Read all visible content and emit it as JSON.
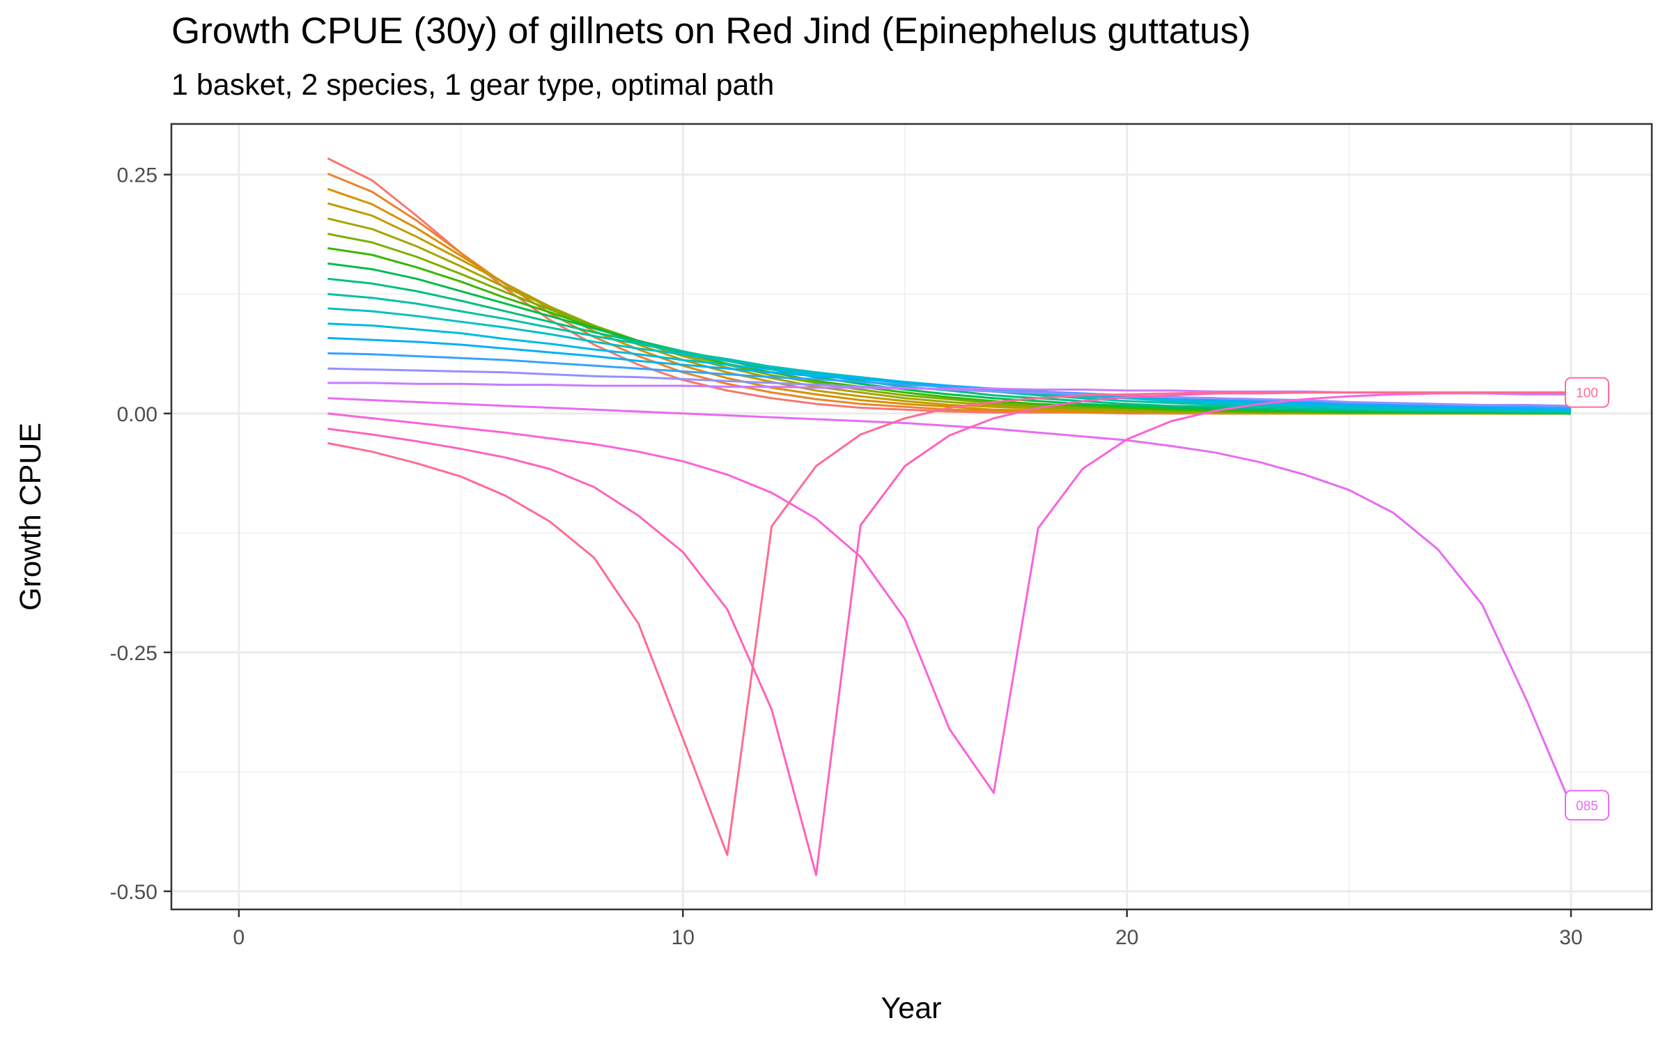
{
  "chart_data": {
    "type": "line",
    "title": "Growth CPUE (30y) of gillnets on Red Jind (Epinephelus guttatus)",
    "subtitle": "1 basket, 2 species, 1 gear type, optimal path",
    "x_label": "Year",
    "y_label": "Growth CPUE",
    "xlim": [
      -1.52,
      31.82
    ],
    "ylim": [
      -0.519,
      0.303
    ],
    "xticks": [
      0,
      10,
      20,
      30
    ],
    "yticks": [
      {
        "value": -0.5,
        "label": "-0.50"
      },
      -0.25,
      {
        "value": 0,
        "label": "0.00"
      },
      0.25
    ],
    "x_minor_grid": [
      5,
      15,
      25
    ],
    "y_minor_grid": [
      -0.375,
      -0.125,
      0.125
    ],
    "grid": true,
    "x": [
      2,
      3,
      4,
      5,
      6,
      7,
      8,
      9,
      10,
      11,
      12,
      13,
      14,
      15,
      16,
      17,
      18,
      19,
      20,
      21,
      22,
      23,
      24,
      25,
      26,
      27,
      28,
      29,
      30
    ],
    "series": [
      {
        "color": "#F8766D",
        "values": [
          0.267,
          0.244,
          0.207,
          0.168,
          0.131,
          0.098,
          0.072,
          0.051,
          0.035,
          0.024,
          0.016,
          0.01,
          0.006,
          0.004,
          0.002,
          0.001,
          0.001,
          0.001,
          0,
          0,
          0,
          0,
          0,
          0,
          0,
          0,
          0,
          0,
          0
        ]
      },
      {
        "color": "#EA8331",
        "values": [
          0.251,
          0.232,
          0.202,
          0.168,
          0.135,
          0.105,
          0.08,
          0.06,
          0.043,
          0.031,
          0.022,
          0.015,
          0.01,
          0.007,
          0.004,
          0.003,
          0.002,
          0.001,
          0.001,
          0,
          0,
          0,
          0,
          0,
          0,
          0,
          0,
          0,
          0
        ]
      },
      {
        "color": "#D89000",
        "values": [
          0.235,
          0.219,
          0.194,
          0.165,
          0.136,
          0.11,
          0.086,
          0.067,
          0.05,
          0.037,
          0.027,
          0.02,
          0.014,
          0.01,
          0.007,
          0.004,
          0.003,
          0.002,
          0.001,
          0.001,
          0.001,
          0,
          0,
          0,
          0,
          0,
          0,
          0,
          0
        ]
      },
      {
        "color": "#C09B00",
        "values": [
          0.22,
          0.207,
          0.185,
          0.161,
          0.136,
          0.112,
          0.091,
          0.072,
          0.056,
          0.043,
          0.033,
          0.024,
          0.018,
          0.013,
          0.009,
          0.007,
          0.005,
          0.003,
          0.002,
          0.001,
          0.001,
          0.001,
          0,
          0,
          0,
          0,
          0,
          0,
          0
        ]
      },
      {
        "color": "#A3A500",
        "values": [
          0.204,
          0.193,
          0.175,
          0.154,
          0.132,
          0.112,
          0.092,
          0.075,
          0.06,
          0.048,
          0.037,
          0.028,
          0.022,
          0.016,
          0.012,
          0.009,
          0.006,
          0.005,
          0.003,
          0.002,
          0.002,
          0.001,
          0.001,
          0,
          0,
          0,
          0,
          0,
          0
        ]
      },
      {
        "color": "#7CAE00",
        "values": [
          0.188,
          0.179,
          0.164,
          0.146,
          0.127,
          0.109,
          0.092,
          0.076,
          0.062,
          0.051,
          0.04,
          0.032,
          0.025,
          0.019,
          0.015,
          0.011,
          0.008,
          0.006,
          0.005,
          0.003,
          0.002,
          0.002,
          0.001,
          0.001,
          0.001,
          0,
          0,
          0,
          0
        ]
      },
      {
        "color": "#39B600",
        "values": [
          0.173,
          0.166,
          0.153,
          0.138,
          0.121,
          0.106,
          0.09,
          0.076,
          0.064,
          0.052,
          0.043,
          0.034,
          0.028,
          0.022,
          0.017,
          0.013,
          0.01,
          0.008,
          0.006,
          0.004,
          0.003,
          0.002,
          0.002,
          0.001,
          0.001,
          0.001,
          0.001,
          0,
          0
        ]
      },
      {
        "color": "#00BB4E",
        "values": [
          0.157,
          0.151,
          0.141,
          0.128,
          0.115,
          0.102,
          0.089,
          0.076,
          0.065,
          0.055,
          0.046,
          0.038,
          0.031,
          0.025,
          0.02,
          0.016,
          0.013,
          0.01,
          0.008,
          0.006,
          0.005,
          0.004,
          0.003,
          0.002,
          0.002,
          0.001,
          0.001,
          0.001,
          0
        ]
      },
      {
        "color": "#00BF7D",
        "values": [
          0.141,
          0.136,
          0.128,
          0.118,
          0.107,
          0.096,
          0.085,
          0.075,
          0.065,
          0.056,
          0.048,
          0.041,
          0.034,
          0.028,
          0.024,
          0.019,
          0.016,
          0.013,
          0.01,
          0.008,
          0.007,
          0.005,
          0.004,
          0.003,
          0.003,
          0.002,
          0.002,
          0.001,
          0.001
        ]
      },
      {
        "color": "#00C1A3",
        "values": [
          0.125,
          0.121,
          0.115,
          0.107,
          0.099,
          0.09,
          0.081,
          0.073,
          0.064,
          0.057,
          0.049,
          0.043,
          0.037,
          0.032,
          0.027,
          0.023,
          0.019,
          0.016,
          0.013,
          0.011,
          0.009,
          0.007,
          0.006,
          0.005,
          0.004,
          0.003,
          0.003,
          0.002,
          0.002
        ]
      },
      {
        "color": "#00BFC4",
        "values": [
          0.11,
          0.107,
          0.102,
          0.096,
          0.09,
          0.083,
          0.075,
          0.068,
          0.062,
          0.055,
          0.049,
          0.043,
          0.038,
          0.033,
          0.029,
          0.025,
          0.021,
          0.018,
          0.016,
          0.013,
          0.011,
          0.009,
          0.008,
          0.006,
          0.005,
          0.004,
          0.004,
          0.003,
          0.002
        ]
      },
      {
        "color": "#00BAE0",
        "values": [
          0.094,
          0.092,
          0.088,
          0.084,
          0.078,
          0.073,
          0.067,
          0.062,
          0.056,
          0.051,
          0.046,
          0.041,
          0.037,
          0.033,
          0.029,
          0.025,
          0.022,
          0.019,
          0.017,
          0.014,
          0.012,
          0.011,
          0.009,
          0.008,
          0.007,
          0.006,
          0.005,
          0.004,
          0.003
        ]
      },
      {
        "color": "#00B0F6",
        "values": [
          0.079,
          0.077,
          0.075,
          0.072,
          0.068,
          0.064,
          0.06,
          0.055,
          0.051,
          0.047,
          0.043,
          0.039,
          0.036,
          0.032,
          0.029,
          0.026,
          0.023,
          0.021,
          0.018,
          0.016,
          0.014,
          0.013,
          0.011,
          0.01,
          0.008,
          0.007,
          0.006,
          0.005,
          0.005
        ]
      },
      {
        "color": "#35A2FF",
        "values": [
          0.063,
          0.062,
          0.06,
          0.058,
          0.056,
          0.053,
          0.05,
          0.047,
          0.044,
          0.041,
          0.038,
          0.036,
          0.033,
          0.03,
          0.028,
          0.025,
          0.023,
          0.021,
          0.019,
          0.017,
          0.016,
          0.014,
          0.013,
          0.011,
          0.01,
          0.009,
          0.008,
          0.007,
          0.006
        ]
      },
      {
        "color": "#9590FF",
        "values": [
          0.047,
          0.046,
          0.045,
          0.044,
          0.043,
          0.041,
          0.039,
          0.038,
          0.036,
          0.034,
          0.032,
          0.03,
          0.028,
          0.027,
          0.025,
          0.023,
          0.022,
          0.02,
          0.019,
          0.017,
          0.016,
          0.015,
          0.014,
          0.012,
          0.011,
          0.01,
          0.009,
          0.009,
          0.008
        ]
      },
      {
        "color": "#C77CFF",
        "values": [
          0.032,
          0.032,
          0.031,
          0.031,
          0.03,
          0.03,
          0.029,
          0.029,
          0.029,
          0.028,
          0.028,
          0.027,
          0.027,
          0.026,
          0.026,
          0.026,
          0.025,
          0.025,
          0.024,
          0.024,
          0.023,
          0.023,
          0.023,
          0.022,
          0.022,
          0.021,
          0.021,
          0.02,
          0.02
        ]
      },
      {
        "name": "085",
        "color": "#E76BF3",
        "values": [
          0.016,
          0.014,
          0.012,
          0.01,
          0.008,
          0.006,
          0.004,
          0.002,
          0.0,
          -0.002,
          -0.004,
          -0.006,
          -0.008,
          -0.01,
          -0.013,
          -0.016,
          -0.02,
          -0.024,
          -0.028,
          -0.034,
          -0.041,
          -0.051,
          -0.064,
          -0.08,
          -0.104,
          -0.142,
          -0.2,
          -0.3,
          -0.41
        ]
      },
      {
        "color": "#FA62DB",
        "values": [
          0.0,
          -0.005,
          -0.01,
          -0.015,
          -0.02,
          -0.026,
          -0.032,
          -0.04,
          -0.05,
          -0.064,
          -0.083,
          -0.11,
          -0.15,
          -0.215,
          -0.33,
          -0.397,
          -0.12,
          -0.058,
          -0.027,
          -0.008,
          0.003,
          0.01,
          0.015,
          0.018,
          0.02,
          0.021,
          0.022,
          0.022,
          0.022
        ]
      },
      {
        "color": "#FF62BC",
        "values": [
          -0.016,
          -0.022,
          -0.029,
          -0.037,
          -0.046,
          -0.058,
          -0.077,
          -0.107,
          -0.145,
          -0.205,
          -0.31,
          -0.483,
          -0.117,
          -0.055,
          -0.023,
          -0.005,
          0.006,
          0.013,
          0.017,
          0.019,
          0.021,
          0.021,
          0.022,
          0.022,
          0.022,
          0.022,
          0.022,
          0.022,
          0.022
        ]
      },
      {
        "name": "100",
        "color": "#FF6C91",
        "values": [
          -0.031,
          -0.04,
          -0.052,
          -0.066,
          -0.086,
          -0.113,
          -0.151,
          -0.22,
          -0.34,
          -0.462,
          -0.118,
          -0.055,
          -0.022,
          -0.005,
          0.006,
          0.012,
          0.016,
          0.019,
          0.02,
          0.021,
          0.022,
          0.022,
          0.022,
          0.022,
          0.022,
          0.022,
          0.022,
          0.022,
          0.022
        ]
      }
    ]
  }
}
